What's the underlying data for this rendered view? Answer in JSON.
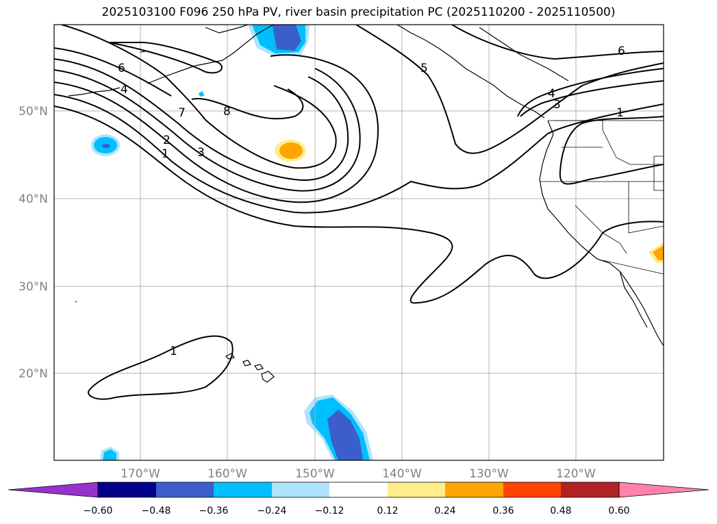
{
  "title": "2025103100 F096 250 hPa PV, river basin precipitation PC (2025110200 - 2025110500)",
  "latitude_labels": [
    "50°N",
    "40°N",
    "30°N",
    "20°N"
  ],
  "longitude_labels": [
    "170°W",
    "160°W",
    "150°W",
    "140°W",
    "130°W",
    "120°W"
  ],
  "pv_contour_labels": [
    "6",
    "4",
    "7",
    "8",
    "2",
    "1",
    "3",
    "5",
    "6",
    "4",
    "3",
    "1",
    "1"
  ],
  "colorbar": {
    "tick_labels": [
      "−0.60",
      "−0.48",
      "−0.36",
      "−0.24",
      "−0.12",
      "0.12",
      "0.24",
      "0.36",
      "0.48",
      "0.60"
    ],
    "levels": [
      -0.6,
      -0.48,
      -0.36,
      -0.24,
      -0.12,
      0.12,
      0.24,
      0.36,
      0.48,
      0.6
    ],
    "colors": [
      "#9932cc",
      "#00008b",
      "#3a5fcd",
      "#00bfff",
      "#aee3fb",
      "#ffffff",
      "#ffec8b",
      "#ffa500",
      "#ff4500",
      "#b22222",
      "#ff82ab"
    ]
  },
  "colors": {
    "contour": "#000000",
    "grid": "#b0b0b0",
    "axis_label": "#808080",
    "neg_light": "#aee3fb",
    "neg_mid": "#00bfff",
    "neg_strong": "#3a5fcd",
    "pos_light": "#ffec8b",
    "pos_mid": "#ffa500"
  }
}
